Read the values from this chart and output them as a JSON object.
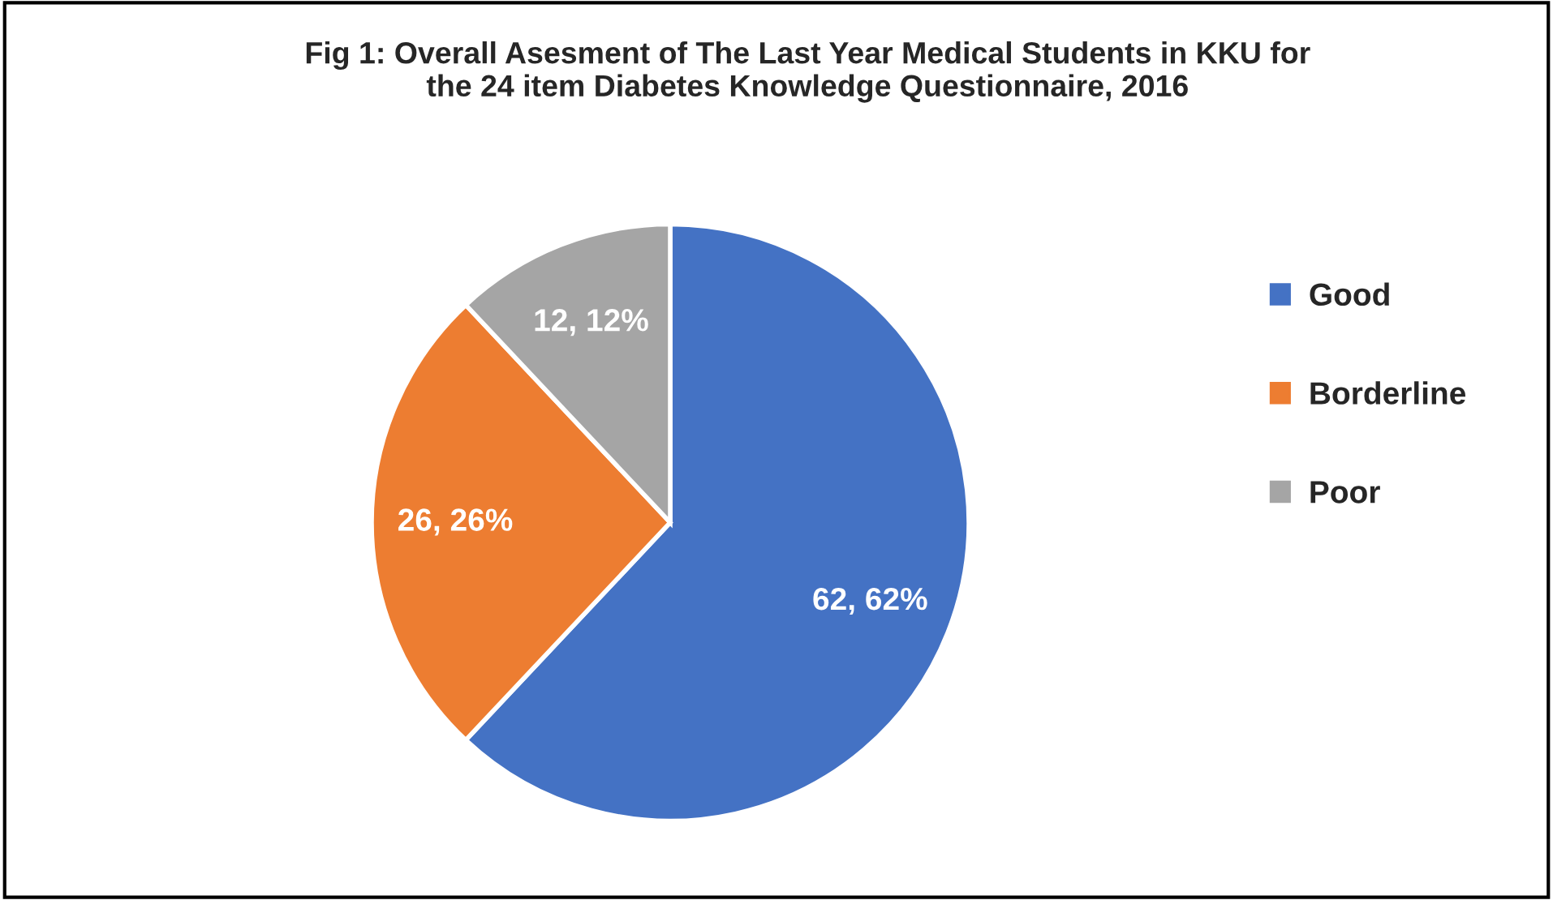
{
  "chart_data": {
    "type": "pie",
    "title": "Fig 1: Overall Asesment of The Last Year Medical Students in KKU for\nthe 24 item Diabetes Knowledge Questionnaire, 2016",
    "categories": [
      "Good",
      "Borderline",
      "Poor"
    ],
    "values": [
      62,
      26,
      12
    ],
    "colors": [
      "#4472c4",
      "#ed7d31",
      "#a5a5a5"
    ],
    "value_labels": [
      "62, 62%",
      "26, 26%",
      "12, 12%"
    ],
    "legend": "right"
  }
}
